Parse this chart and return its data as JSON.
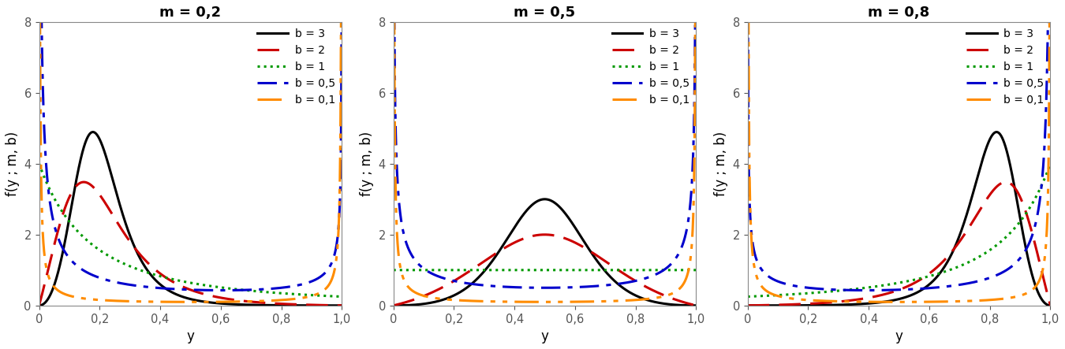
{
  "m_values": [
    0.2,
    0.5,
    0.8
  ],
  "b_values": [
    3,
    2,
    1,
    0.5,
    0.1
  ],
  "titles": [
    "m = 0,2",
    "m = 0,5",
    "m = 0,8"
  ],
  "ylabel": "f(y ; m, b)",
  "xlabel": "y",
  "ylim": [
    0,
    8
  ],
  "xlim": [
    0,
    1
  ],
  "yticks": [
    0,
    2,
    4,
    6,
    8
  ],
  "xticks": [
    0.0,
    0.2,
    0.4,
    0.6,
    0.8,
    1.0
  ],
  "legend_labels": [
    "b = 3",
    "b = 2",
    "b = 1",
    "b = 0,5",
    "b = 0,1"
  ],
  "line_colors": [
    "#000000",
    "#cc0000",
    "#009900",
    "#0000cc",
    "#ff8c00"
  ],
  "figsize": [
    13.5,
    4.43
  ],
  "dpi": 100
}
